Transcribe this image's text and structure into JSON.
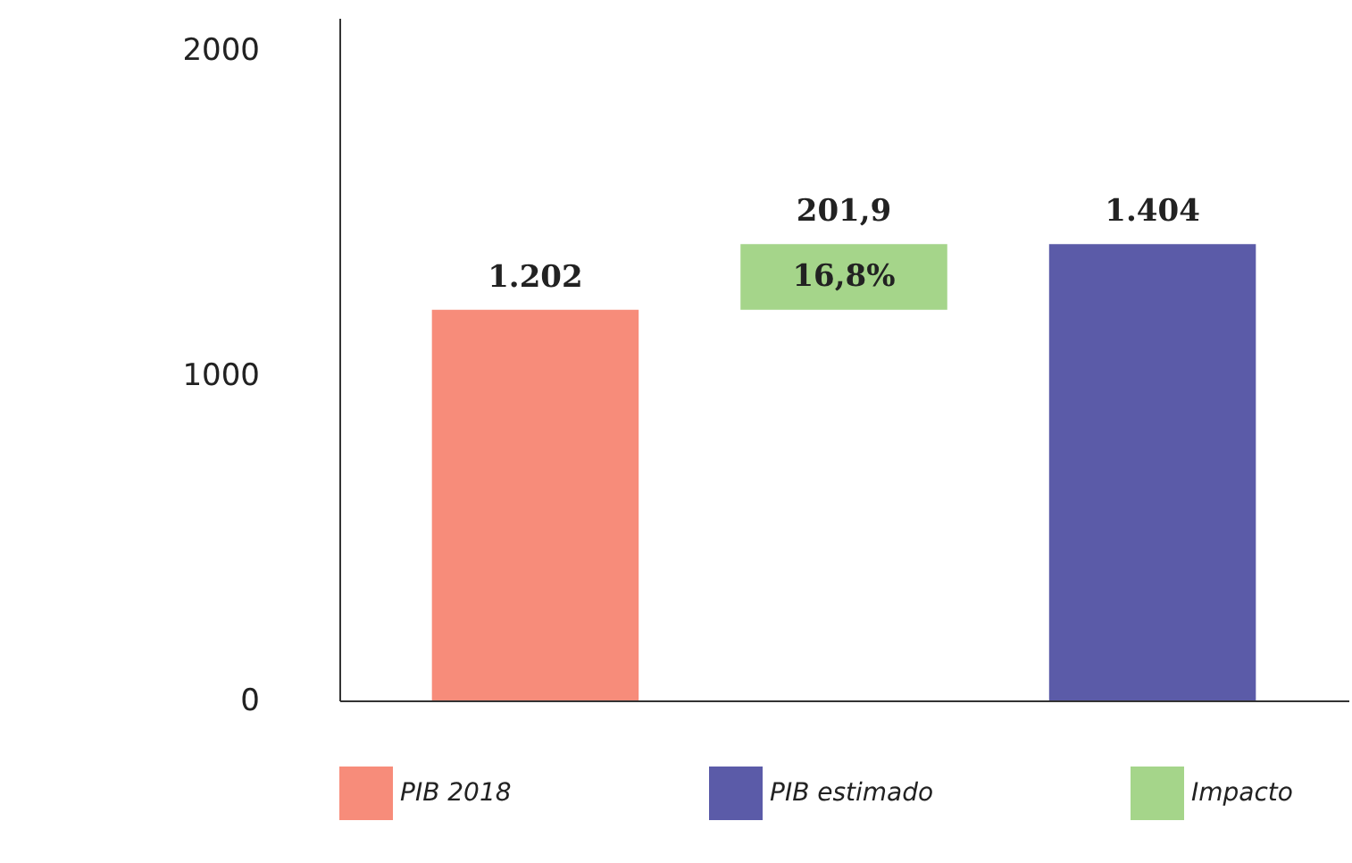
{
  "chart_data": {
    "type": "bar",
    "categories": [
      null,
      null,
      null
    ],
    "series": [
      {
        "name": "PIB 2018",
        "color": "#f78c7a",
        "values": [
          1202,
          null,
          null
        ],
        "value_labels": [
          "1.202",
          null,
          null
        ]
      },
      {
        "name": "PIB estimado",
        "color": "#5b5ba8",
        "values": [
          null,
          null,
          1404
        ],
        "value_labels": [
          null,
          null,
          "1.404"
        ]
      },
      {
        "name": "Impacto",
        "color": "#a5d58a",
        "values": [
          null,
          201.9,
          null
        ],
        "base": [
          null,
          1202,
          null
        ],
        "value_labels": [
          null,
          "201,9",
          null
        ]
      }
    ],
    "annotations": [
      "16,8%"
    ],
    "ylim": [
      0,
      2100
    ],
    "yticks": [
      0,
      1000,
      2000
    ],
    "grid": false,
    "legend": "bottom"
  }
}
